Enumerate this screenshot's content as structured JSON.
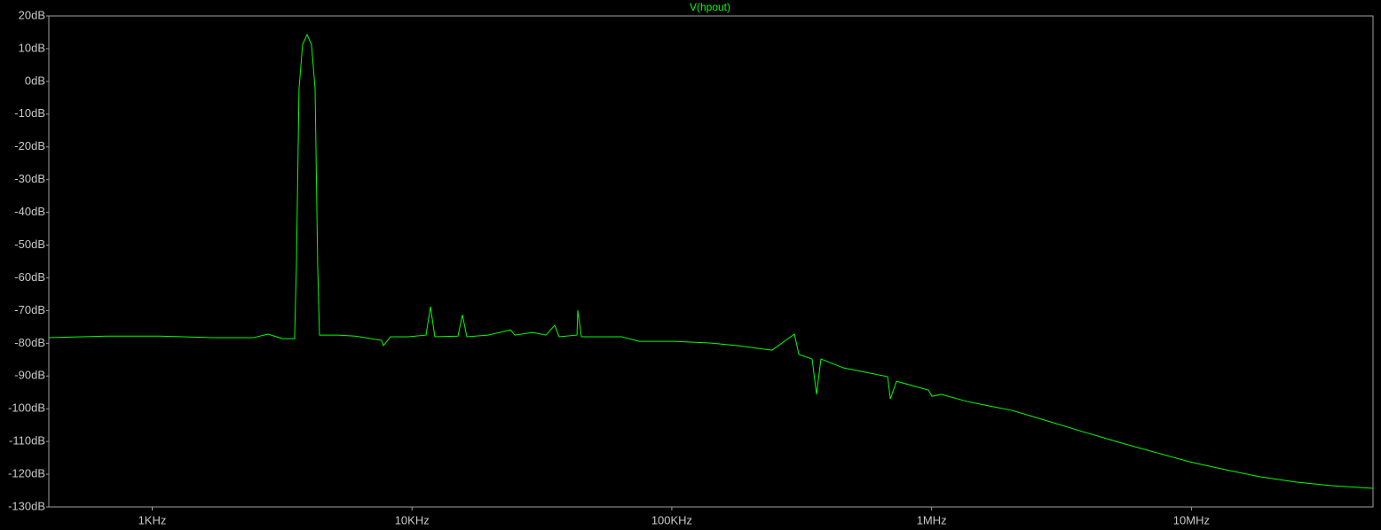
{
  "chart_data": {
    "type": "line",
    "title": "V(hpout)",
    "log_x": true,
    "grid": false,
    "xlim": [
      400,
      50000000
    ],
    "ylim": [
      -130,
      20
    ],
    "xticks": [
      {
        "value": 1000,
        "label": "1KHz"
      },
      {
        "value": 10000,
        "label": "10KHz"
      },
      {
        "value": 100000,
        "label": "100KHz"
      },
      {
        "value": 1000000,
        "label": "1MHz"
      },
      {
        "value": 10000000,
        "label": "10MHz"
      }
    ],
    "yticks": [
      {
        "value": 20,
        "label": "20dB"
      },
      {
        "value": 10,
        "label": "10dB"
      },
      {
        "value": 0,
        "label": "0dB"
      },
      {
        "value": -10,
        "label": "-10dB"
      },
      {
        "value": -20,
        "label": "-20dB"
      },
      {
        "value": -30,
        "label": "-30dB"
      },
      {
        "value": -40,
        "label": "-40dB"
      },
      {
        "value": -50,
        "label": "-50dB"
      },
      {
        "value": -60,
        "label": "-60dB"
      },
      {
        "value": -70,
        "label": "-70dB"
      },
      {
        "value": -80,
        "label": "-80dB"
      },
      {
        "value": -90,
        "label": "-90dB"
      },
      {
        "value": -100,
        "label": "-100dB"
      },
      {
        "value": -110,
        "label": "-110dB"
      },
      {
        "value": -120,
        "label": "-120dB"
      },
      {
        "value": -130,
        "label": "-130dB"
      }
    ],
    "x": [
      400,
      667,
      1069,
      1714,
      2443,
      2793,
      3170,
      3532,
      3590,
      3674,
      3793,
      3945,
      4103,
      4236,
      4335,
      4405,
      5152,
      6039,
      7638,
      7762,
      8265,
      9680,
      11324,
      11777,
      12246,
      15031,
      15631,
      16255,
      19634,
      23927,
      24880,
      29108,
      32760,
      35425,
      36842,
      43152,
      43450,
      44870,
      63970,
      74820,
      102560,
      140300,
      177800,
      243200,
      296400,
      308300,
      346800,
      360600,
      375000,
      457100,
      677600,
      693400,
      732800,
      972700,
      1002000,
      1086000,
      1374000,
      1608000,
      2037000,
      2786000,
      3819000,
      5236000,
      7161000,
      9817000,
      13460000,
      18410000,
      25230000,
      34590000,
      50000000
    ],
    "series": [
      {
        "name": "V(hpout)",
        "color": "#00ff00",
        "values": [
          -78.3,
          -77.8,
          -77.8,
          -78.3,
          -78.3,
          -77.2,
          -78.6,
          -78.6,
          -56.4,
          -2.2,
          11.3,
          14.3,
          11.3,
          -2.2,
          -56.4,
          -77.5,
          -77.5,
          -77.8,
          -79.1,
          -80.7,
          -78.0,
          -78.0,
          -77.5,
          -68.8,
          -78.0,
          -77.8,
          -71.3,
          -78.0,
          -77.5,
          -75.9,
          -77.5,
          -76.7,
          -77.5,
          -74.5,
          -78.0,
          -77.5,
          -69.9,
          -78.0,
          -78.0,
          -79.4,
          -79.4,
          -79.9,
          -80.7,
          -82.1,
          -77.2,
          -83.4,
          -84.8,
          -95.6,
          -84.8,
          -87.5,
          -90.2,
          -97.0,
          -91.6,
          -94.3,
          -96.2,
          -95.6,
          -97.8,
          -98.9,
          -100.5,
          -103.7,
          -107.0,
          -110.2,
          -113.2,
          -116.2,
          -118.6,
          -120.8,
          -122.4,
          -123.5,
          -124.3
        ]
      }
    ]
  }
}
